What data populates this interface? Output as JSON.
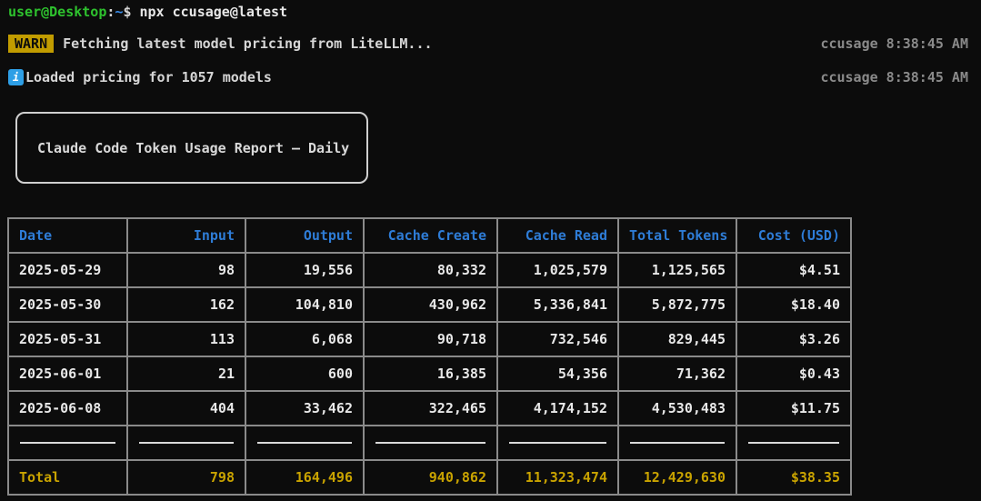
{
  "terminal": {
    "prompt": {
      "user_host": "user@Desktop",
      "separator": ":",
      "path": "~",
      "prompt_char": "$",
      "command": " npx ccusage@latest"
    },
    "log_lines": [
      {
        "badge": "WARN",
        "icon": "warn-badge",
        "message": "Fetching latest model pricing from LiteLLM...",
        "meta": "ccusage 8:38:45 AM"
      },
      {
        "badge": "i",
        "icon": "info-icon",
        "message": "Loaded pricing for 1057 models",
        "meta": "ccusage 8:38:45 AM"
      }
    ],
    "report_title": "Claude Code Token Usage Report — Daily"
  },
  "table": {
    "columns": [
      "Date",
      "Input",
      "Output",
      "Cache Create",
      "Cache Read",
      "Total Tokens",
      "Cost (USD)"
    ],
    "rows": [
      [
        "2025-05-29",
        "98",
        "19,556",
        "80,332",
        "1,025,579",
        "1,125,565",
        "$4.51"
      ],
      [
        "2025-05-30",
        "162",
        "104,810",
        "430,962",
        "5,336,841",
        "5,872,775",
        "$18.40"
      ],
      [
        "2025-05-31",
        "113",
        "6,068",
        "90,718",
        "732,546",
        "829,445",
        "$3.26"
      ],
      [
        "2025-06-01",
        "21",
        "600",
        "16,385",
        "54,356",
        "71,362",
        "$0.43"
      ],
      [
        "2025-06-08",
        "404",
        "33,462",
        "322,465",
        "4,174,152",
        "4,530,483",
        "$11.75"
      ]
    ],
    "total_row": [
      "Total",
      "798",
      "164,496",
      "940,862",
      "11,323,474",
      "12,429,630",
      "$38.35"
    ]
  },
  "colors": {
    "background": "#0c0c0c",
    "prompt_green": "#2ec22e",
    "path_blue": "#3b8eea",
    "header_blue": "#2e7cd6",
    "warn_yellow": "#c19c00",
    "total_yellow": "#c9a300",
    "info_blue": "#2e9fe6",
    "border_gray": "#8a8a8a",
    "meta_gray": "#8a8a8a"
  }
}
